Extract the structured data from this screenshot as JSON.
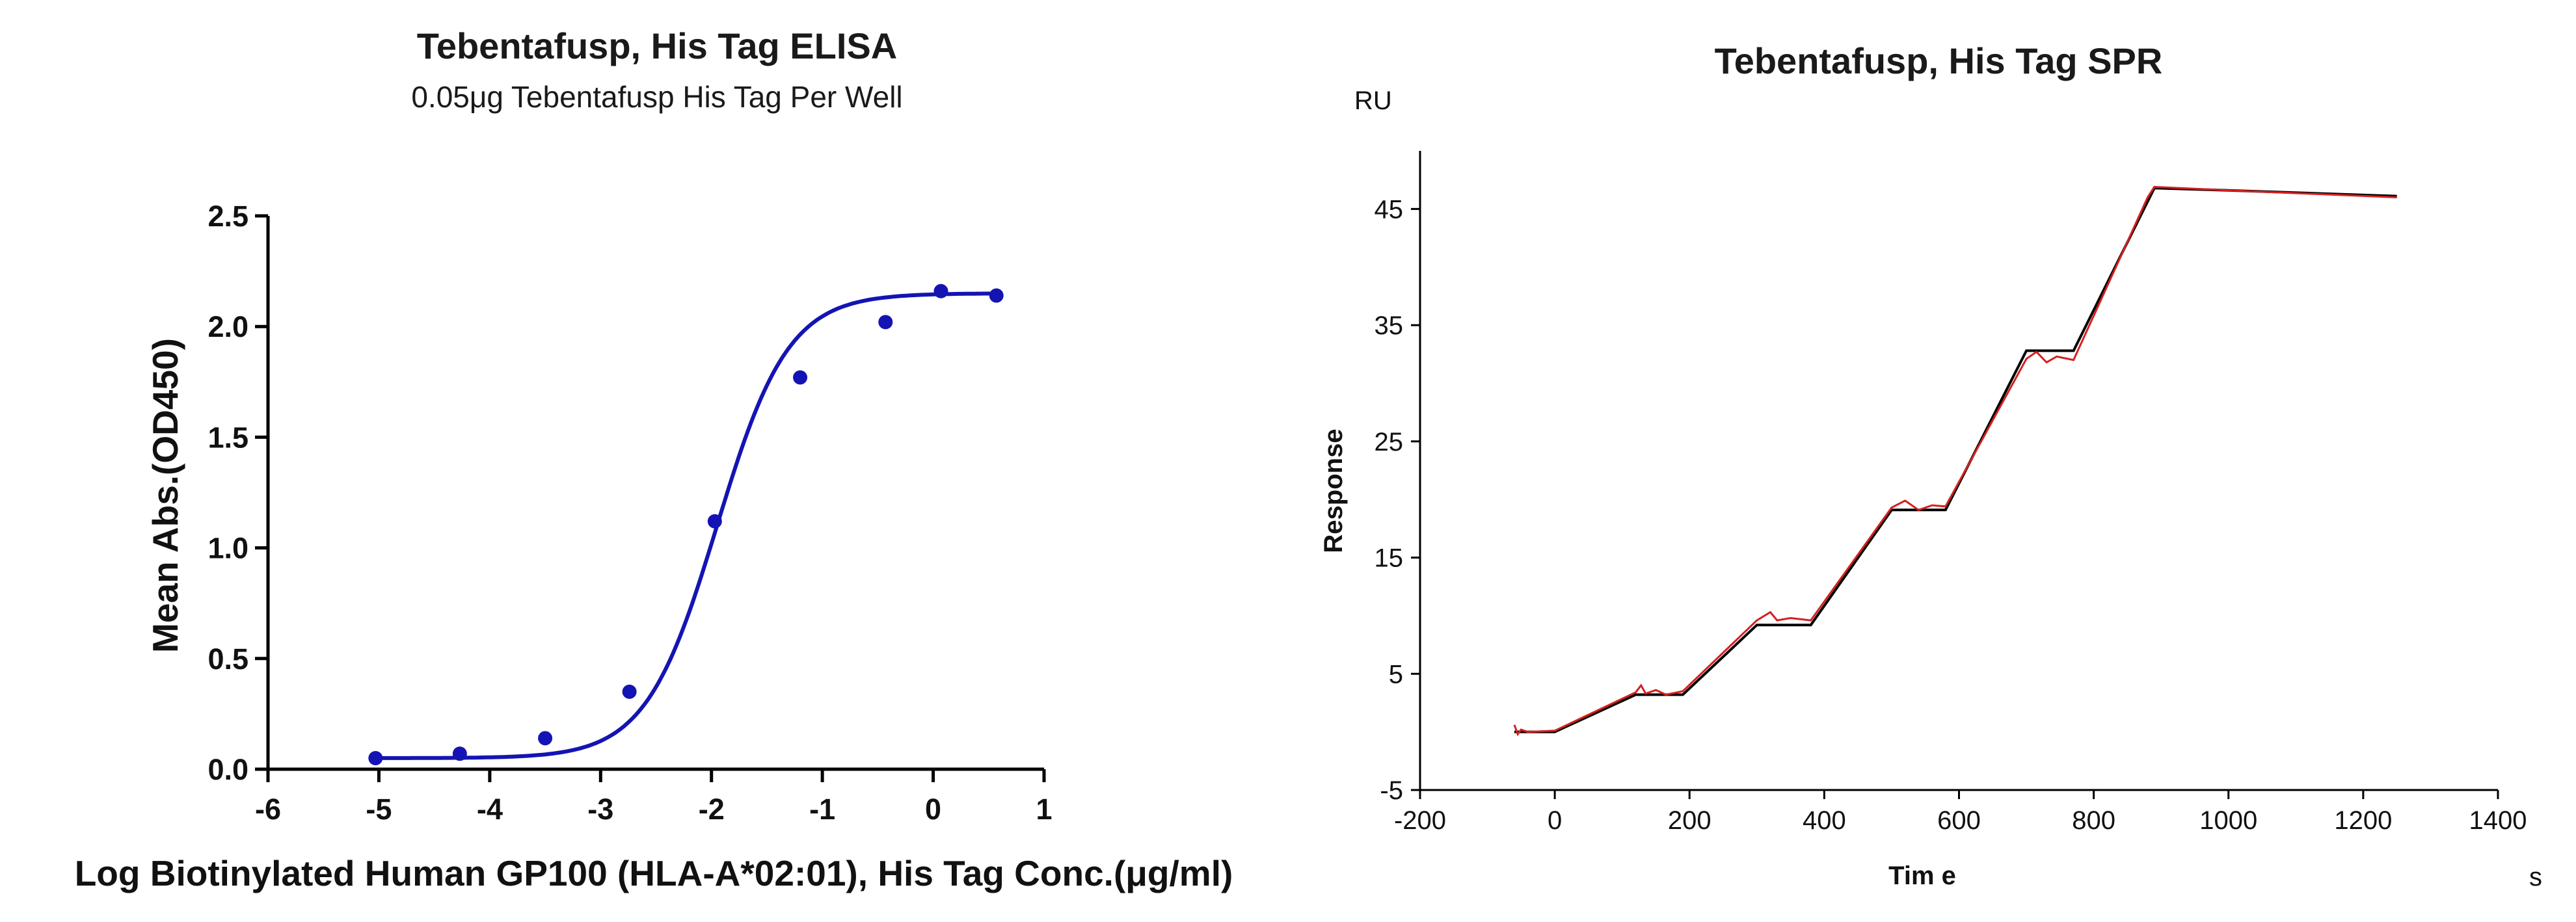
{
  "chart_data": [
    {
      "type": "scatter",
      "title": "Tebentafusp, His Tag ELISA",
      "subtitle": "0.05μg Tebentafusp His Tag Per Well",
      "xlabel": "Log Biotinylated Human GP100 (HLA-A*02:01), His Tag Conc.(μg/ml)",
      "ylabel": "Mean Abs.(OD450)",
      "xlim": [
        -6,
        1
      ],
      "ylim": [
        0,
        2.5
      ],
      "xticks": [
        "-6",
        "-5",
        "-4",
        "-3",
        "-2",
        "-1",
        "0",
        "1"
      ],
      "yticks": [
        "0.0",
        "0.5",
        "1.0",
        "1.5",
        "2.0",
        "2.5"
      ],
      "grid": false,
      "point_color": "#1414b4",
      "curve_color": "#1414b4",
      "series": [
        {
          "name": "measured",
          "x": [
            -5.03,
            -4.27,
            -3.5,
            -2.74,
            -1.97,
            -1.2,
            -0.43,
            0.07,
            0.57
          ],
          "y": [
            0.05,
            0.07,
            0.14,
            0.35,
            1.12,
            1.77,
            2.02,
            2.16,
            2.14
          ]
        }
      ],
      "fit": {
        "model": "4PL",
        "bottom": 0.05,
        "top": 2.15,
        "log_ec50": -1.95,
        "hill": 1.35,
        "x_range": [
          -5.03,
          0.57
        ]
      }
    },
    {
      "type": "line",
      "title": "Tebentafusp, His Tag SPR",
      "xlabel": "Tim e",
      "ylabel": "Response",
      "x_unit": "s",
      "y_unit": "RU",
      "xlim": [
        -200,
        1400
      ],
      "ylim": [
        -5,
        50
      ],
      "xticks": [
        "-200",
        "0",
        "200",
        "400",
        "600",
        "800",
        "1000",
        "1200",
        "1400"
      ],
      "yticks": [
        "-5",
        "5",
        "15",
        "25",
        "35",
        "45"
      ],
      "grid": false,
      "series": [
        {
          "name": "fit",
          "color": "#000000",
          "x": [
            -60,
            0,
            120,
            190,
            300,
            380,
            500,
            580,
            700,
            770,
            890,
            1000,
            1250
          ],
          "y": [
            0,
            0,
            3.2,
            3.2,
            9.2,
            9.2,
            19.1,
            19.1,
            32.8,
            32.8,
            46.8,
            46.6,
            46.1
          ]
        },
        {
          "name": "measured",
          "color": "#d42020",
          "x": [
            -60,
            -55,
            -50,
            -40,
            0,
            120,
            128,
            135,
            150,
            165,
            190,
            300,
            320,
            330,
            350,
            380,
            500,
            520,
            540,
            560,
            580,
            700,
            715,
            730,
            745,
            770,
            880,
            890,
            1000,
            1250
          ],
          "y": [
            0.6,
            -0.2,
            0.2,
            0,
            0.1,
            3.4,
            4.0,
            3.3,
            3.6,
            3.2,
            3.5,
            9.6,
            10.3,
            9.6,
            9.8,
            9.6,
            19.3,
            19.9,
            19.1,
            19.5,
            19.4,
            32.1,
            32.7,
            31.8,
            32.3,
            32.0,
            46.0,
            46.9,
            46.6,
            46.0
          ]
        }
      ]
    }
  ]
}
